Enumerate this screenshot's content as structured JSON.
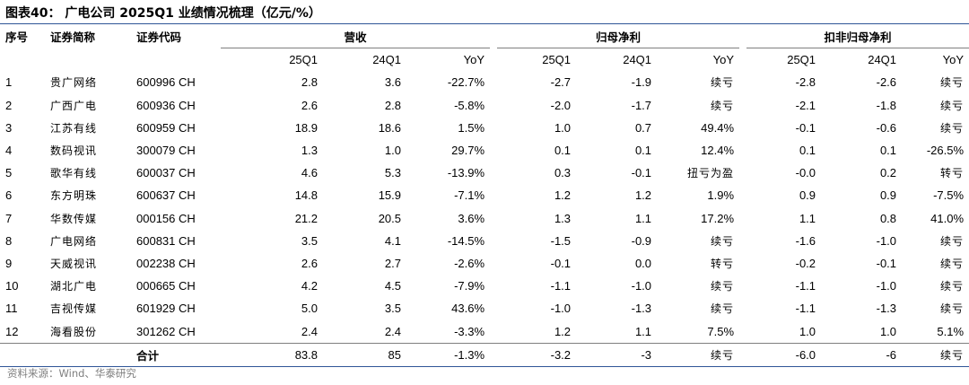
{
  "title": "图表40：  广电公司 2025Q1 业绩情况梳理（亿元/%）",
  "headers": {
    "seq": "序号",
    "name": "证券简称",
    "code": "证券代码",
    "group_revenue": "营收",
    "group_net": "归母净利",
    "group_net_ex": "扣非归母净利",
    "sub": [
      "25Q1",
      "24Q1",
      "YoY",
      "25Q1",
      "24Q1",
      "YoY",
      "25Q1",
      "24Q1",
      "YoY"
    ]
  },
  "rows": [
    {
      "seq": "1",
      "name": "贵广网络",
      "code": "600996 CH",
      "v": [
        "2.8",
        "3.6",
        "-22.7%",
        "-2.7",
        "-1.9",
        "续亏",
        "-2.8",
        "-2.6",
        "续亏"
      ]
    },
    {
      "seq": "2",
      "name": "广西广电",
      "code": "600936 CH",
      "v": [
        "2.6",
        "2.8",
        "-5.8%",
        "-2.0",
        "-1.7",
        "续亏",
        "-2.1",
        "-1.8",
        "续亏"
      ]
    },
    {
      "seq": "3",
      "name": "江苏有线",
      "code": "600959 CH",
      "v": [
        "18.9",
        "18.6",
        "1.5%",
        "1.0",
        "0.7",
        "49.4%",
        "-0.1",
        "-0.6",
        "续亏"
      ]
    },
    {
      "seq": "4",
      "name": "数码视讯",
      "code": "300079 CH",
      "v": [
        "1.3",
        "1.0",
        "29.7%",
        "0.1",
        "0.1",
        "12.4%",
        "0.1",
        "0.1",
        "-26.5%"
      ]
    },
    {
      "seq": "5",
      "name": "歌华有线",
      "code": "600037 CH",
      "v": [
        "4.6",
        "5.3",
        "-13.9%",
        "0.3",
        "-0.1",
        "扭亏为盈",
        "-0.0",
        "0.2",
        "转亏"
      ]
    },
    {
      "seq": "6",
      "name": "东方明珠",
      "code": "600637 CH",
      "v": [
        "14.8",
        "15.9",
        "-7.1%",
        "1.2",
        "1.2",
        "1.9%",
        "0.9",
        "0.9",
        "-7.5%"
      ]
    },
    {
      "seq": "7",
      "name": "华数传媒",
      "code": "000156 CH",
      "v": [
        "21.2",
        "20.5",
        "3.6%",
        "1.3",
        "1.1",
        "17.2%",
        "1.1",
        "0.8",
        "41.0%"
      ]
    },
    {
      "seq": "8",
      "name": "广电网络",
      "code": "600831 CH",
      "v": [
        "3.5",
        "4.1",
        "-14.5%",
        "-1.5",
        "-0.9",
        "续亏",
        "-1.6",
        "-1.0",
        "续亏"
      ]
    },
    {
      "seq": "9",
      "name": "天威视讯",
      "code": "002238 CH",
      "v": [
        "2.6",
        "2.7",
        "-2.6%",
        "-0.1",
        "0.0",
        "转亏",
        "-0.2",
        "-0.1",
        "续亏"
      ]
    },
    {
      "seq": "10",
      "name": "湖北广电",
      "code": "000665 CH",
      "v": [
        "4.2",
        "4.5",
        "-7.9%",
        "-1.1",
        "-1.0",
        "续亏",
        "-1.1",
        "-1.0",
        "续亏"
      ]
    },
    {
      "seq": "11",
      "name": "吉视传媒",
      "code": "601929 CH",
      "v": [
        "5.0",
        "3.5",
        "43.6%",
        "-1.0",
        "-1.3",
        "续亏",
        "-1.1",
        "-1.3",
        "续亏"
      ]
    },
    {
      "seq": "12",
      "name": "海看股份",
      "code": "301262 CH",
      "v": [
        "2.4",
        "2.4",
        "-3.3%",
        "1.2",
        "1.1",
        "7.5%",
        "1.0",
        "1.0",
        "5.1%"
      ]
    }
  ],
  "total": {
    "label": "合计",
    "v": [
      "83.8",
      "85",
      "-1.3%",
      "-3.2",
      "-3",
      "续亏",
      "-6.0",
      "-6",
      "续亏"
    ]
  },
  "source": "资料来源：Wind、华泰研究",
  "colors": {
    "rule": "#2f5597",
    "divider": "#7f7f7f",
    "source_text": "#7f7f7f"
  }
}
